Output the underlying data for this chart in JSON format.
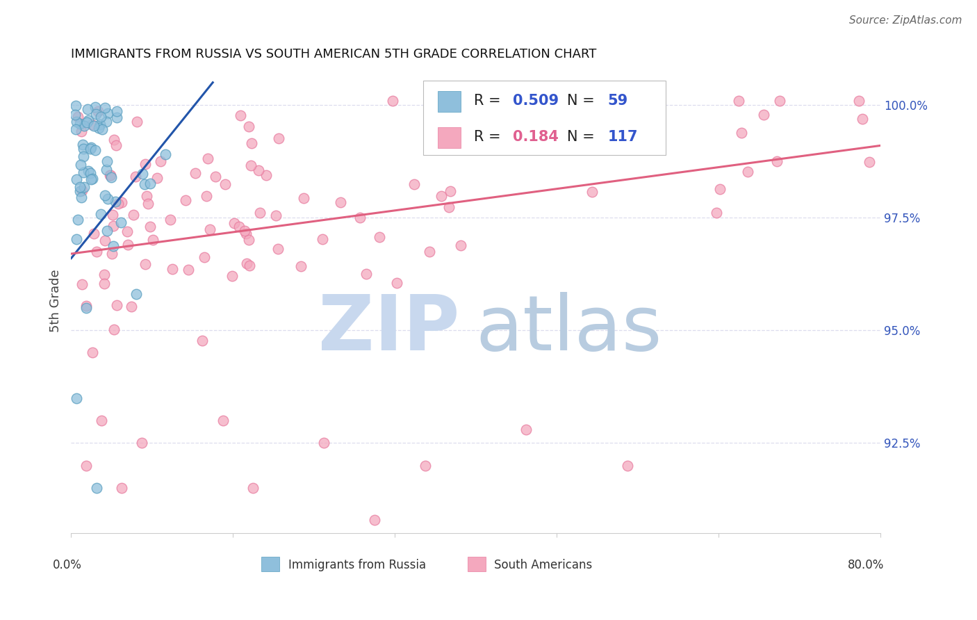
{
  "title": "IMMIGRANTS FROM RUSSIA VS SOUTH AMERICAN 5TH GRADE CORRELATION CHART",
  "source": "Source: ZipAtlas.com",
  "ylabel": "5th Grade",
  "legend_r_russia": "0.509",
  "legend_n_russia": "59",
  "legend_r_south": "0.184",
  "legend_n_south": "117",
  "russia_color": "#8fbfdc",
  "russia_edge_color": "#5a9fc0",
  "south_color": "#f4a8be",
  "south_edge_color": "#e87da0",
  "russia_line_color": "#2255aa",
  "south_line_color": "#e06080",
  "russia_trendline_x": [
    0.0,
    14.0
  ],
  "russia_trendline_y": [
    96.6,
    100.5
  ],
  "south_trendline_x": [
    0.0,
    80.0
  ],
  "south_trendline_y": [
    96.7,
    99.1
  ],
  "xlim": [
    0,
    80
  ],
  "ylim": [
    90.5,
    100.8
  ],
  "yticks": [
    92.5,
    95.0,
    97.5,
    100.0
  ],
  "ytick_labels": [
    "92.5%",
    "95.0%",
    "97.5%",
    "100.0%"
  ],
  "xticks": [
    0,
    16,
    32,
    48,
    64,
    80
  ],
  "background_color": "#ffffff",
  "grid_color": "#ddddee",
  "spine_color": "#cccccc",
  "title_fontsize": 13,
  "source_fontsize": 11,
  "axis_label_fontsize": 13,
  "tick_fontsize": 12,
  "legend_fontsize": 15,
  "watermark_zip_color": "#c8d8ee",
  "watermark_atlas_color": "#b8cce0"
}
